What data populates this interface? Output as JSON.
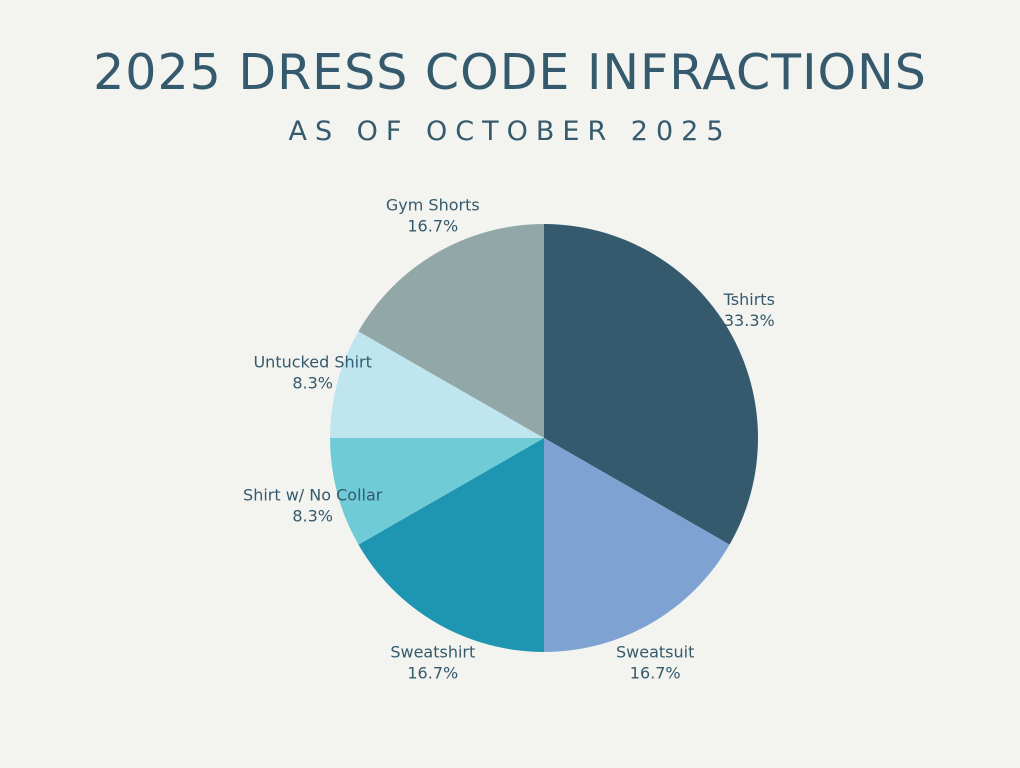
{
  "header": {
    "title": "2025 DRESS CODE INFRACTIONS",
    "subtitle": "AS OF OCTOBER 2025"
  },
  "chart_data": {
    "type": "pie",
    "title": "2025 DRESS CODE INFRACTIONS",
    "subtitle": "AS OF OCTOBER 2025",
    "slices": [
      {
        "label": "Tshirts",
        "value": 33.3,
        "value_label": "33.3%",
        "color": "#355a6d"
      },
      {
        "label": "Sweatsuit",
        "value": 16.7,
        "value_label": "16.7%",
        "color": "#7ea3d3"
      },
      {
        "label": "Sweatshirt",
        "value": 16.7,
        "value_label": "16.7%",
        "color": "#1e96b2"
      },
      {
        "label": "Shirt w/ No Collar",
        "value": 8.3,
        "value_label": "8.3%",
        "color": "#6fcbd6"
      },
      {
        "label": "Untucked Shirt",
        "value": 8.3,
        "value_label": "8.3%",
        "color": "#bfe5ee"
      },
      {
        "label": "Gym Shorts",
        "value": 16.7,
        "value_label": "16.7%",
        "color": "#92a7a8"
      }
    ],
    "start_direction": "top",
    "orientation": "clockwise"
  }
}
